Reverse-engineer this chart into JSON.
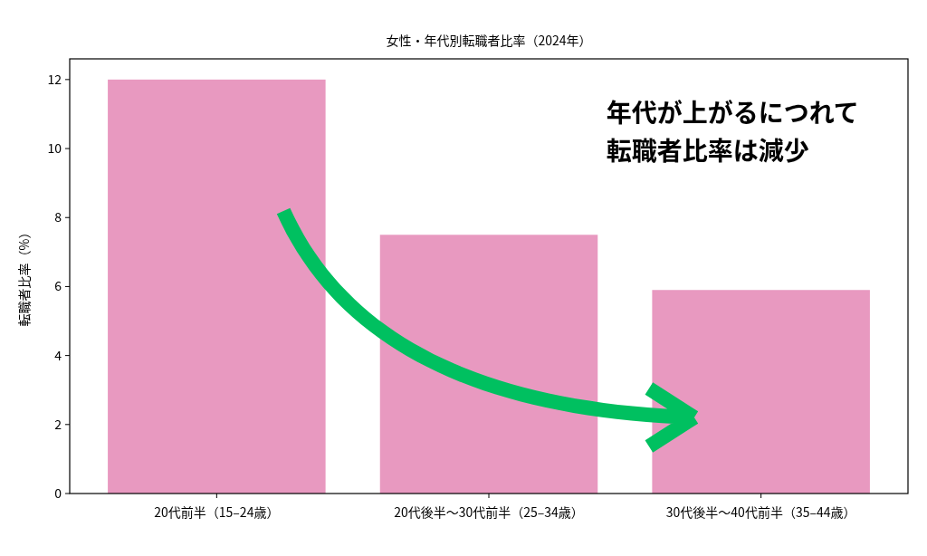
{
  "chart_data": {
    "type": "bar",
    "title": "女性・年代別転職者比率（2024年）",
    "ylabel": "転職者比率（%）",
    "categories": [
      "20代前半（15–24歳）",
      "20代後半〜30代前半（25–34歳）",
      "30代後半〜40代前半（35–44歳）"
    ],
    "values": [
      12.0,
      7.5,
      5.9
    ],
    "color": "#e899c0",
    "ylim": [
      0,
      12.6
    ],
    "yticks": [
      0,
      2,
      4,
      6,
      8,
      10,
      12
    ],
    "grid": false,
    "annotations": [
      "年代が上がるにつれて",
      "転職者比率は減少"
    ]
  }
}
